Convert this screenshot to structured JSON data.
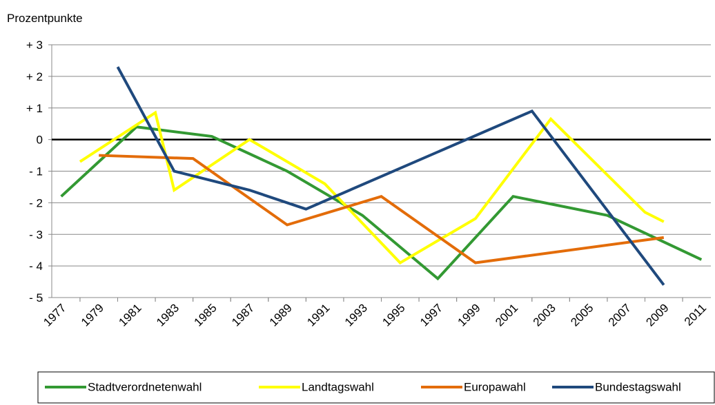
{
  "chart_data": {
    "type": "line",
    "y_axis_label": "Prozentpunkte",
    "xlim": [
      1976.5,
      2011.5
    ],
    "xticks": [
      1977,
      1979,
      1981,
      1983,
      1985,
      1987,
      1989,
      1991,
      1993,
      1995,
      1997,
      1999,
      2001,
      2003,
      2005,
      2007,
      2009,
      2011
    ],
    "ylim": [
      -5,
      3
    ],
    "yticks": [
      {
        "value": -5,
        "label": "- 5"
      },
      {
        "value": -4,
        "label": "- 4"
      },
      {
        "value": -3,
        "label": "- 3"
      },
      {
        "value": -2,
        "label": "- 2"
      },
      {
        "value": -1,
        "label": "- 1"
      },
      0,
      {
        "value": 1,
        "label": "+ 1"
      },
      {
        "value": 2,
        "label": "+ 2"
      },
      {
        "value": 3,
        "label": "+ 3"
      }
    ],
    "grid": true,
    "legend": "bottom",
    "series": [
      {
        "name": "Stadtverordnetenwahl",
        "color": "#339933",
        "x": [
          1977,
          1981,
          1985,
          1989,
          1993,
          1997,
          2001,
          2006,
          2011
        ],
        "values": [
          -1.8,
          0.4,
          0.1,
          -1.0,
          -2.4,
          -4.4,
          -1.8,
          -2.4,
          -3.8
        ]
      },
      {
        "name": "Landtagswahl",
        "color": "#ffff00",
        "x": [
          1978,
          1982,
          1983,
          1987,
          1991,
          1995,
          1999,
          2003,
          2008,
          2009
        ],
        "values": [
          -0.7,
          0.85,
          -1.6,
          0.0,
          -1.4,
          -3.9,
          -2.5,
          0.65,
          -2.3,
          -2.6
        ]
      },
      {
        "name": "Europawahl",
        "color": "#e36c09",
        "x": [
          1979,
          1984,
          1989,
          1994,
          1999,
          2009
        ],
        "values": [
          -0.5,
          -0.6,
          -2.7,
          -1.8,
          -3.9,
          -3.1
        ]
      },
      {
        "name": "Bundestagswahl",
        "color": "#1f497d",
        "x": [
          1980,
          1983,
          1987,
          1990,
          2002,
          2009
        ],
        "values": [
          2.3,
          -1.0,
          -1.6,
          -2.2,
          0.9,
          -4.6
        ]
      }
    ]
  }
}
